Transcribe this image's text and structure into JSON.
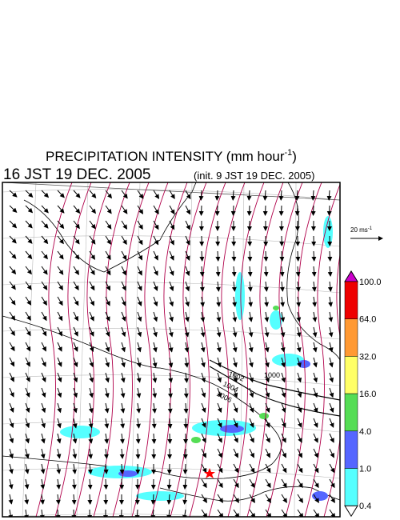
{
  "header": {
    "title": "PRECIPITATION INTENSITY (mm hour",
    "title_sup": "-1",
    "title_close": ")",
    "time": "16 JST 19 DEC. 2005",
    "init": "(init. 9 JST 19 DEC. 2005)"
  },
  "scale": {
    "label": "20 ms",
    "sup": "-1"
  },
  "colorbar": {
    "labels": [
      "100.0",
      "64.0",
      "32.0",
      "16.0",
      "4.0",
      "1.0",
      "0.4"
    ],
    "colors": [
      "#cc00cc",
      "#ee0000",
      "#ff9933",
      "#ffff66",
      "#55dd55",
      "#5566ff",
      "#55ffff",
      "#ffffff"
    ]
  },
  "isobars": [
    "1000",
    "1002",
    "1004",
    "1006"
  ]
}
